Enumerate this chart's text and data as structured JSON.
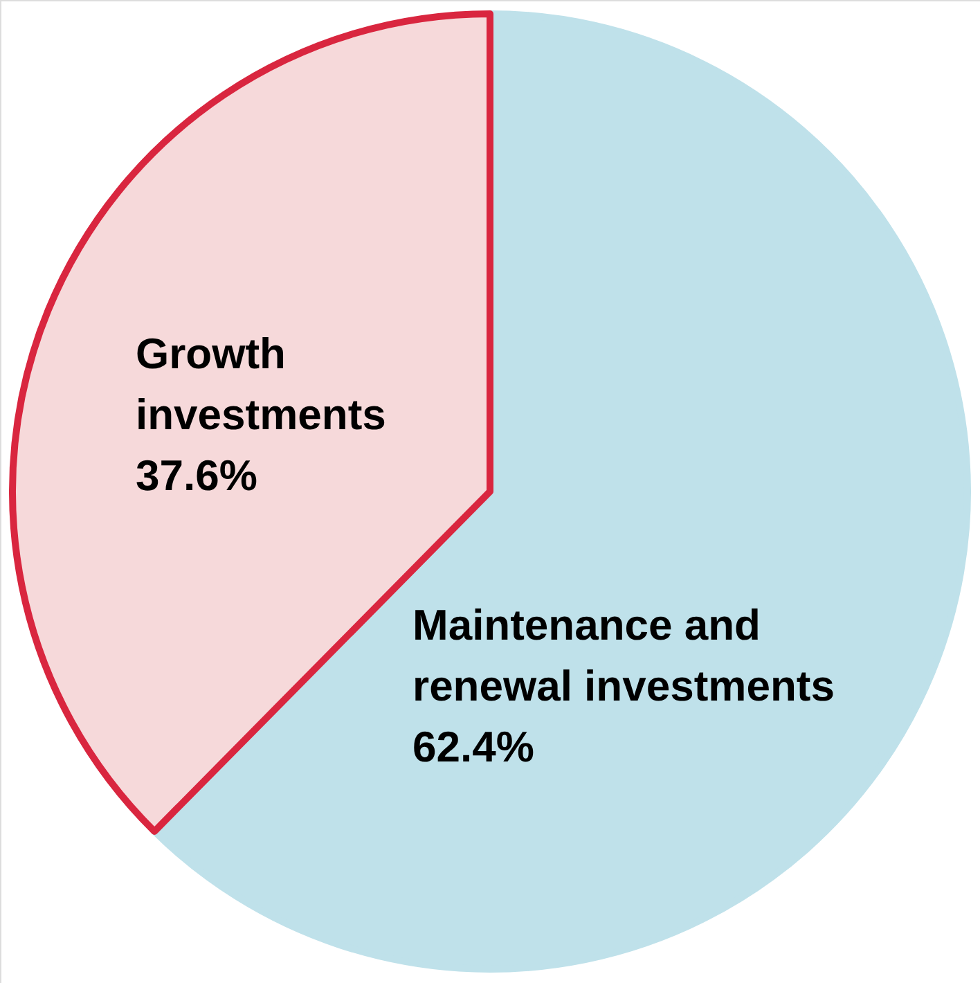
{
  "chart_data": {
    "type": "pie",
    "categories": [
      "Maintenance and renewal investments",
      "Growth investments"
    ],
    "values": [
      62.4,
      37.6
    ],
    "colors": [
      "#bfe1ea",
      "#f6d9da"
    ],
    "value_labels": [
      "62.4%",
      "37.6%"
    ]
  }
}
